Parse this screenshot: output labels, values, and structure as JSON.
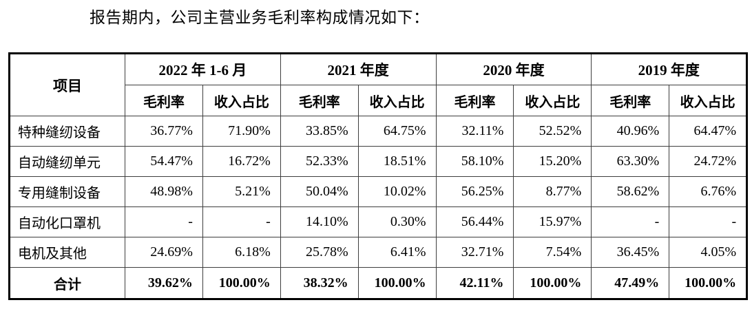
{
  "intro": {
    "text": "报告期内，公司主营业务毛利率构成情况如下："
  },
  "table": {
    "item_header": "项目",
    "periods": [
      {
        "label": "2022 年 1-6 月"
      },
      {
        "label": "2021 年度"
      },
      {
        "label": "2020 年度"
      },
      {
        "label": "2019 年度"
      }
    ],
    "sub_headers": {
      "margin": "毛利率",
      "share": "收入占比"
    },
    "rows": [
      {
        "item": "特种缝纫设备",
        "values": [
          "36.77%",
          "71.90%",
          "33.85%",
          "64.75%",
          "32.11%",
          "52.52%",
          "40.96%",
          "64.47%"
        ]
      },
      {
        "item": "自动缝纫单元",
        "values": [
          "54.47%",
          "16.72%",
          "52.33%",
          "18.51%",
          "58.10%",
          "15.20%",
          "63.30%",
          "24.72%"
        ]
      },
      {
        "item": "专用缝制设备",
        "values": [
          "48.98%",
          "5.21%",
          "50.04%",
          "10.02%",
          "56.25%",
          "8.77%",
          "58.62%",
          "6.76%"
        ]
      },
      {
        "item": "自动化口罩机",
        "values": [
          "-",
          "-",
          "14.10%",
          "0.30%",
          "56.44%",
          "15.97%",
          "-",
          "-"
        ]
      },
      {
        "item": "电机及其他",
        "values": [
          "24.69%",
          "6.18%",
          "25.78%",
          "6.41%",
          "32.71%",
          "7.54%",
          "36.45%",
          "4.05%"
        ]
      }
    ],
    "total": {
      "item": "合计",
      "values": [
        "39.62%",
        "100.00%",
        "38.32%",
        "100.00%",
        "42.11%",
        "100.00%",
        "47.49%",
        "100.00%"
      ]
    }
  }
}
